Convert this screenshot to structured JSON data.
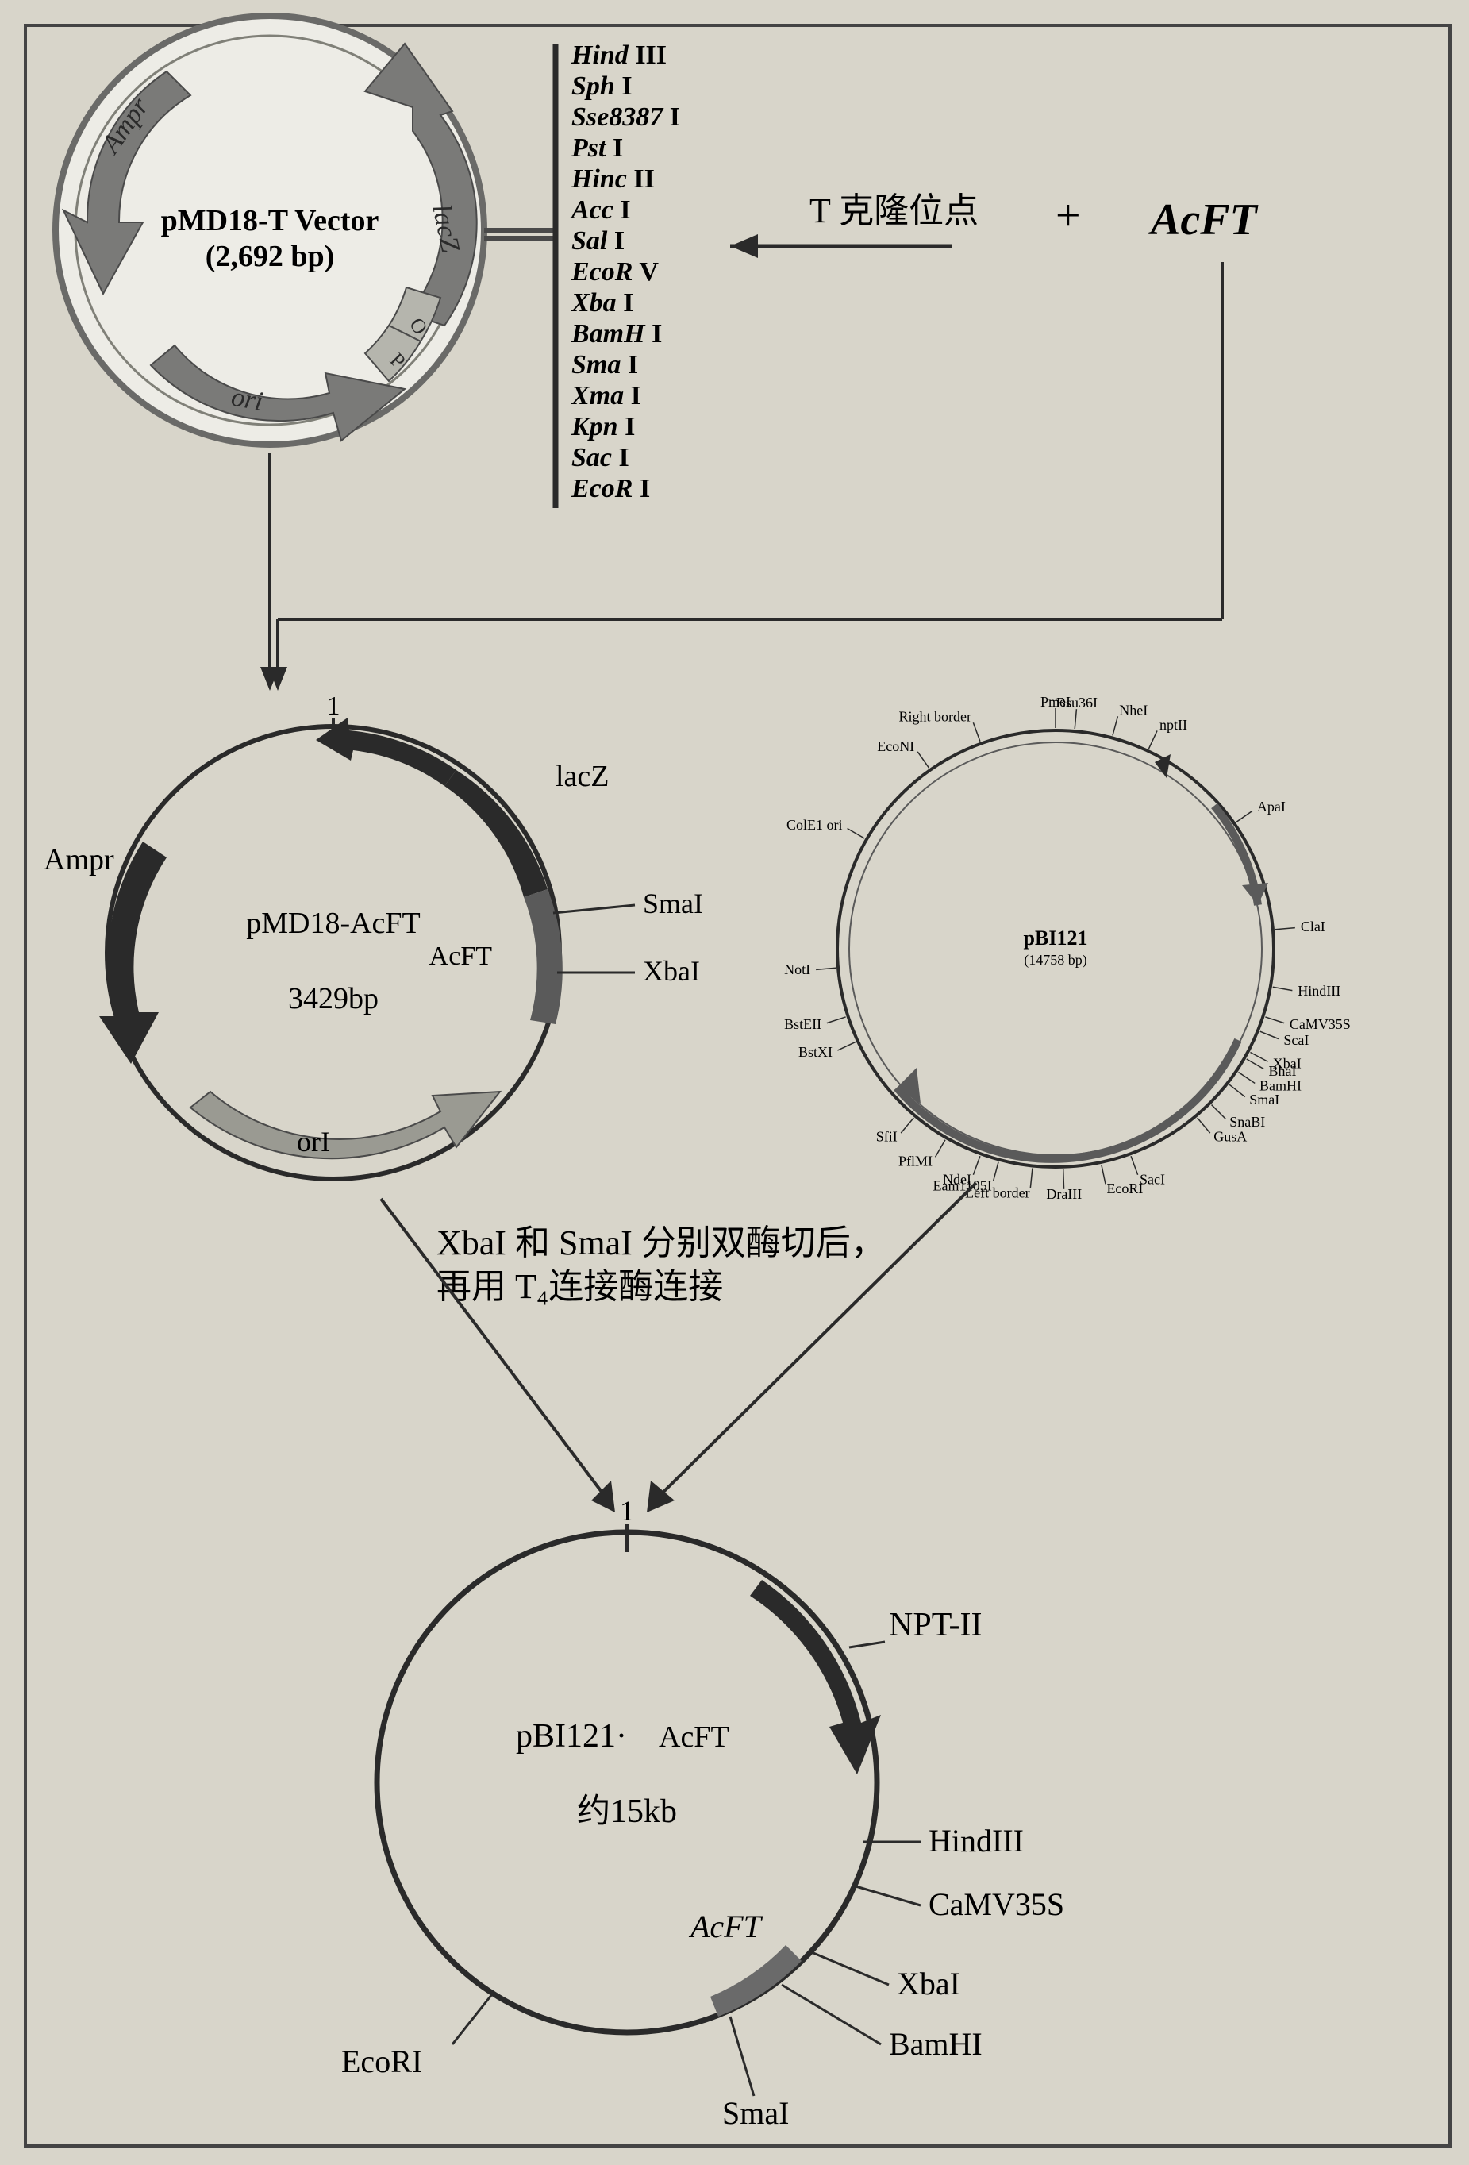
{
  "colors": {
    "bg": "#d8d5ca",
    "border": "#444444",
    "plasmid_ring": "#6a6a68",
    "plasmid_fill": "#edece6",
    "arrow_gray": "#7a7a78",
    "arrow_dark": "#2a2a2a",
    "arrow_light": "#b0b0a8",
    "text": "#1a1a1a"
  },
  "top_plasmid": {
    "name_line1": "pMD18-T Vector",
    "name_line2": "(2,692 bp)",
    "font_name": 38,
    "labels": {
      "ampr": "Ampr",
      "lacz": "lacZ",
      "ori": "ori",
      "o": "O",
      "p": "P"
    },
    "enzyme_list": [
      "Hind III",
      "Sph I",
      "Sse8387 I",
      "Pst I",
      "Hinc II",
      "Acc I",
      "Sal I",
      "EcoR V",
      "Xba I",
      "BamH I",
      "Sma I",
      "Xma I",
      "Kpn I",
      "Sac I",
      "EcoR I"
    ],
    "enzyme_font": 34,
    "enzyme_font_italic_part": true,
    "tclone_label": "T 克隆位点",
    "tclone_font": 44,
    "plus_label": "+",
    "acft_label": "AcFT",
    "acft_font": 52
  },
  "mid_left_plasmid": {
    "name": "pMD18-AcFT",
    "size": "3429bp",
    "font_name": 38,
    "labels": {
      "ampr": "Ampr",
      "lacz": "lacZ",
      "ori": "orI",
      "acft": "AcFT",
      "smai": "SmaI",
      "xbai": "XbaI",
      "one": "1"
    }
  },
  "mid_right_plasmid": {
    "name": "pBI121",
    "size": "(14758 bp)",
    "font_name": 22,
    "site_font": 18,
    "sites": [
      {
        "label": "NotI",
        "angle": -95
      },
      {
        "label": "ColE1 ori",
        "angle": -60
      },
      {
        "label": "EcoNI",
        "angle": -35
      },
      {
        "label": "Right border",
        "angle": -20
      },
      {
        "label": "PmeI",
        "angle": 0
      },
      {
        "label": "Bsu36I",
        "angle": 5
      },
      {
        "label": "NheI",
        "angle": 15
      },
      {
        "label": "nptII",
        "angle": 25
      },
      {
        "label": "ApaI",
        "angle": 55
      },
      {
        "label": "ClaI",
        "angle": 85
      },
      {
        "label": "HindIII",
        "angle": 100
      },
      {
        "label": "CaMV35S",
        "angle": 108
      },
      {
        "label": "ScaI",
        "angle": 112
      },
      {
        "label": "XbaI",
        "angle": 118
      },
      {
        "label": "BhaI",
        "angle": 120
      },
      {
        "label": "BamHI",
        "angle": 124
      },
      {
        "label": "SmaI",
        "angle": 128
      },
      {
        "label": "SnaΒI",
        "angle": 135
      },
      {
        "label": "GusA",
        "angle": 140
      },
      {
        "label": "SacI",
        "angle": 160
      },
      {
        "label": "EcoRI",
        "angle": 168
      },
      {
        "label": "DraIII",
        "angle": 178
      },
      {
        "label": "Left border",
        "angle": 186
      },
      {
        "label": "Eam1105I",
        "angle": 195
      },
      {
        "label": "NdeI",
        "angle": -160
      },
      {
        "label": "PflMI",
        "angle": -150
      },
      {
        "label": "SfiI",
        "angle": -140
      },
      {
        "label": "BstXI",
        "angle": -115
      },
      {
        "label": "BstEII",
        "angle": -108
      }
    ]
  },
  "digest_text": {
    "line1": "XbaI 和 SmaI 分别双酶切后，",
    "line2": "再用 T₄连接酶连接",
    "font": 44
  },
  "bottom_plasmid": {
    "name_line1": "pBI121·",
    "name_line1b": "AcFT",
    "size": "约15kb",
    "font_name": 42,
    "labels": {
      "nptii": "NPT-II",
      "acft": "AcFT",
      "hindiii": "HindIII",
      "camv35s": "CaMV35S",
      "xbai": "XbaI",
      "bamhi": "BamHI",
      "smai": "SmaI",
      "ecori": "EcoRI",
      "one": "1"
    }
  }
}
